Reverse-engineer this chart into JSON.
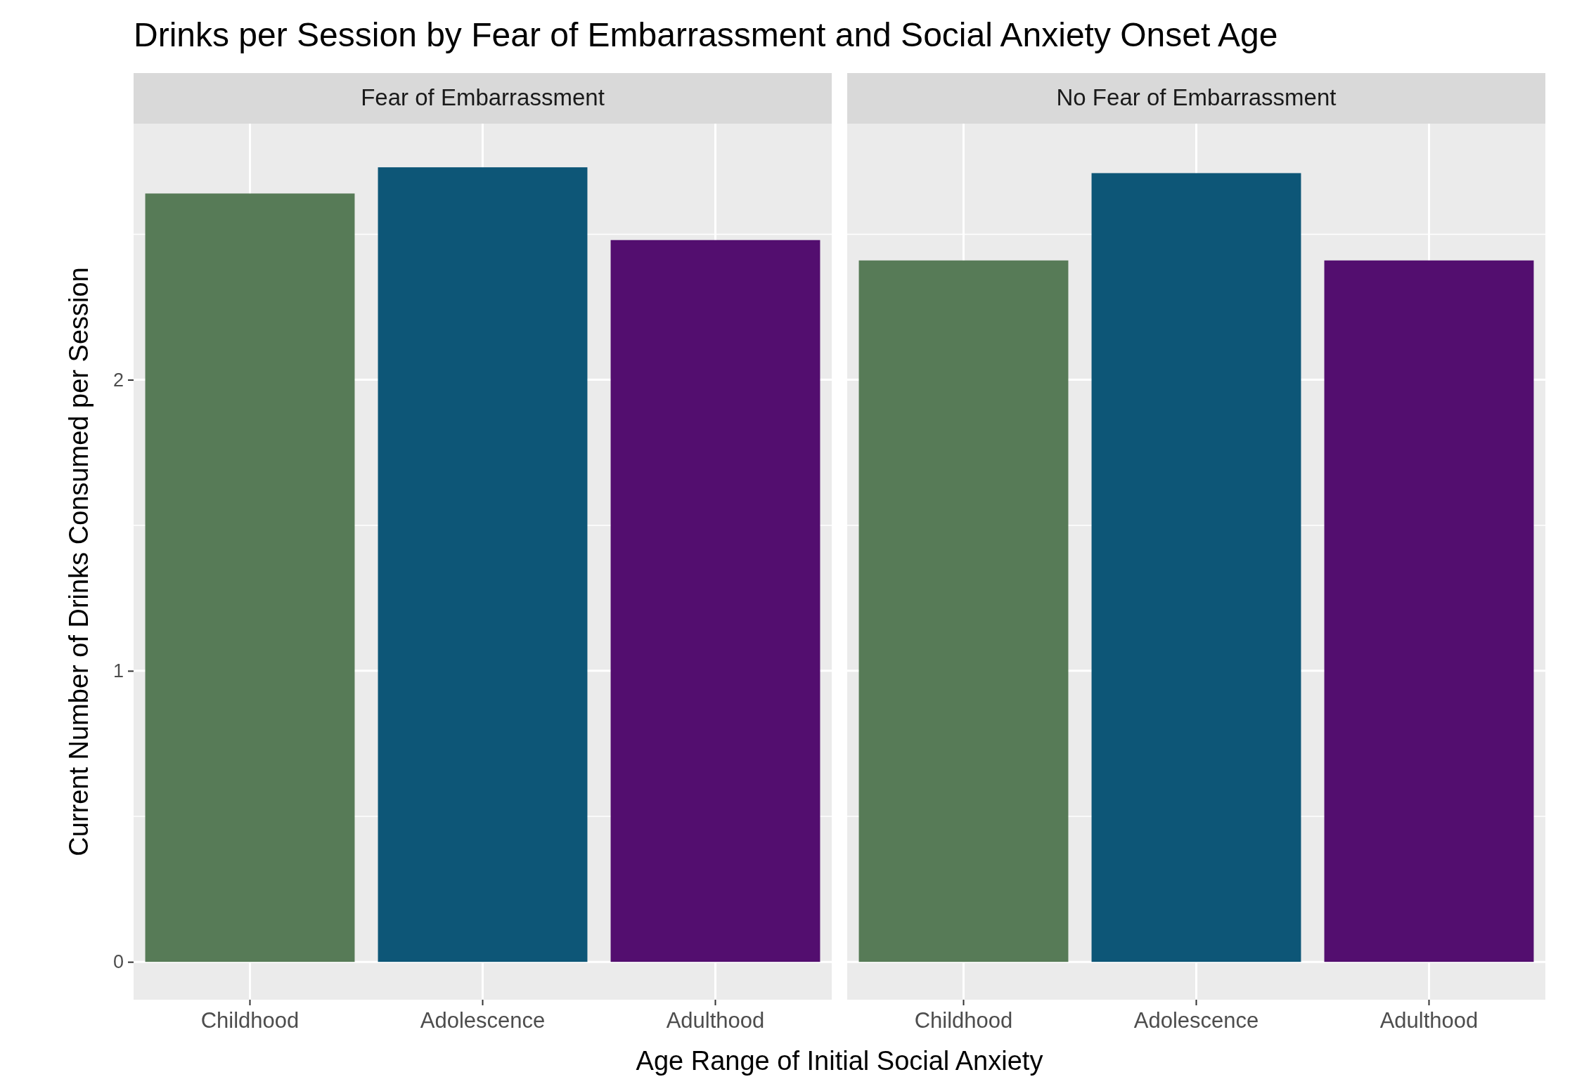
{
  "chart_data": [
    {
      "type": "bar",
      "title": "Drinks per Session by Fear of Embarrassment and Social Anxiety Onset Age",
      "subtitle": "Fear of Embarrassment",
      "xlabel": "Age Range of Initial Social Anxiety",
      "ylabel": "Current Number of Drinks Consumed per Session",
      "categories": [
        "Childhood",
        "Adolescence",
        "Adulthood"
      ],
      "values": [
        2.64,
        2.73,
        2.48
      ],
      "colors": [
        "#577b57",
        "#0d5677",
        "#530e6f"
      ],
      "ylim": [
        -0.13,
        2.88
      ],
      "yticks": [
        0,
        1,
        2
      ],
      "grid": true
    },
    {
      "type": "bar",
      "subtitle": "No Fear of Embarrassment",
      "categories": [
        "Childhood",
        "Adolescence",
        "Adulthood"
      ],
      "values": [
        2.41,
        2.71,
        2.41
      ],
      "colors": [
        "#577b57",
        "#0d5677",
        "#530e6f"
      ],
      "ylim": [
        -0.13,
        2.88
      ],
      "yticks": [
        0,
        1,
        2
      ],
      "grid": true,
      "tick_labels": "x"
    }
  ]
}
